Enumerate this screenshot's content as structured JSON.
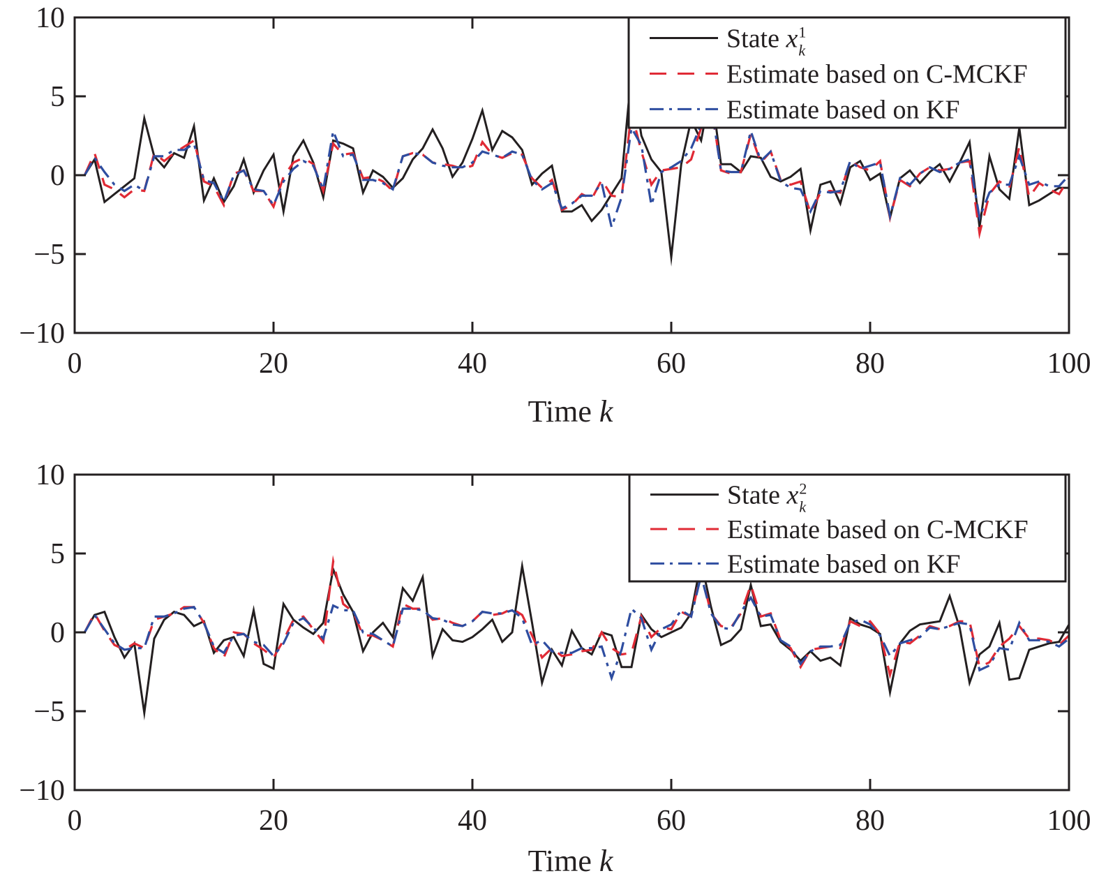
{
  "colors": {
    "state": "#231f20",
    "cmckf": "#e02a35",
    "kf": "#2e4da0",
    "axis": "#231f20"
  },
  "chart_data": [
    {
      "type": "line",
      "xlabel_text": "Time ",
      "xlabel_var": "k",
      "xlim": [
        0,
        100
      ],
      "ylim": [
        -10,
        10
      ],
      "xticks": [
        "0",
        "20",
        "40",
        "60",
        "80",
        "100"
      ],
      "yticks": [
        "10",
        "5",
        "0",
        "−5",
        "−10"
      ],
      "grid": false,
      "legend_position": "top-right",
      "legend": [
        {
          "label": "State ",
          "var": "x",
          "sup": "1",
          "sub": "k"
        },
        {
          "label": "Estimate based on C-MCKF"
        },
        {
          "label": "Estimate based on KF"
        }
      ],
      "x": [
        1,
        2,
        3,
        4,
        5,
        6,
        7,
        8,
        9,
        10,
        11,
        12,
        13,
        14,
        15,
        16,
        17,
        18,
        19,
        20,
        21,
        22,
        23,
        24,
        25,
        26,
        27,
        28,
        29,
        30,
        31,
        32,
        33,
        34,
        35,
        36,
        37,
        38,
        39,
        40,
        41,
        42,
        43,
        44,
        45,
        46,
        47,
        48,
        49,
        50,
        51,
        52,
        53,
        54,
        55,
        56,
        57,
        58,
        59,
        60,
        61,
        62,
        63,
        64,
        65,
        66,
        67,
        68,
        69,
        70,
        71,
        72,
        73,
        74,
        75,
        76,
        77,
        78,
        79,
        80,
        81,
        82,
        83,
        84,
        85,
        86,
        87,
        88,
        89,
        90,
        91,
        92,
        93,
        94,
        95,
        96,
        97,
        98,
        99,
        100
      ],
      "series": [
        {
          "name": "State x_k^1",
          "style": "solid",
          "values": [
            0,
            1.0,
            -1.7,
            -1.2,
            -0.7,
            -0.2,
            3.6,
            1.2,
            0.5,
            1.4,
            1.1,
            3.1,
            -1.6,
            -0.2,
            -1.7,
            -0.7,
            1.0,
            -1.1,
            0.3,
            1.3,
            -2.3,
            1.2,
            2.2,
            0.8,
            -1.4,
            2.2,
            2.0,
            1.7,
            -1.1,
            0.3,
            -0.1,
            -0.8,
            -0.2,
            1.0,
            1.7,
            2.9,
            1.7,
            -0.1,
            0.8,
            2.3,
            4.1,
            1.6,
            2.8,
            2.4,
            1.6,
            -0.6,
            0.1,
            0.6,
            -2.3,
            -2.3,
            -1.9,
            -2.9,
            -2.2,
            -1.2,
            -0.2,
            6.5,
            2.5,
            1.0,
            0.2,
            -5.2,
            0.7,
            3.5,
            2.2,
            5.5,
            0.7,
            0.7,
            0.2,
            1.2,
            1.1,
            -0.1,
            -0.4,
            -0.1,
            0.4,
            -3.5,
            -0.6,
            -0.4,
            -1.8,
            0.5,
            0.9,
            -0.3,
            0.1,
            -2.7,
            -0.2,
            0.3,
            -0.5,
            0.2,
            0.7,
            -0.4,
            0.8,
            2.1,
            -3.3,
            1.2,
            -0.9,
            -1.5,
            3.0,
            -1.9,
            -1.6,
            -1.2,
            -0.8,
            -0.8
          ]
        },
        {
          "name": "Estimate based on C-MCKF",
          "style": "dashed",
          "values": [
            0,
            1.4,
            -0.6,
            -0.9,
            -1.4,
            -0.9,
            -1.0,
            1.4,
            0.9,
            1.4,
            1.8,
            2.2,
            -0.4,
            -0.7,
            -1.9,
            0.1,
            0.3,
            -1.0,
            -1.0,
            -2.0,
            -0.1,
            0.8,
            1.1,
            0.7,
            -1.0,
            2.0,
            1.3,
            1.4,
            -0.2,
            -0.1,
            -0.4,
            -1.0,
            1.2,
            1.4,
            1.3,
            0.8,
            0.7,
            0.6,
            0.4,
            0.6,
            2.1,
            1.3,
            1.1,
            1.4,
            1.3,
            -0.2,
            -0.8,
            -0.3,
            -2.2,
            -1.9,
            -1.2,
            -1.5,
            -0.3,
            -1.3,
            -1.4,
            4.0,
            1.5,
            -0.6,
            0.3,
            0.4,
            0.5,
            1.0,
            3.0,
            4.5,
            0.3,
            0.1,
            0.2,
            2.6,
            0.8,
            1.5,
            -0.3,
            -0.6,
            -0.4,
            -2.4,
            -1.1,
            -1.0,
            -1.1,
            0.9,
            0.5,
            0.3,
            0.9,
            -2.7,
            -0.3,
            -0.7,
            0.1,
            0.5,
            0.3,
            0.4,
            0.8,
            0.9,
            -3.7,
            -1.2,
            -0.4,
            -0.8,
            1.8,
            -1.4,
            -0.5,
            -0.9,
            -1.2,
            -0.2
          ]
        },
        {
          "name": "Estimate based on KF",
          "style": "dashdot",
          "values": [
            0,
            1.1,
            0.2,
            -0.6,
            -1.0,
            -0.6,
            -1.0,
            1.2,
            1.2,
            1.6,
            1.6,
            2.0,
            -0.3,
            -0.5,
            -1.7,
            0.0,
            0.3,
            -0.9,
            -1.0,
            -1.9,
            -0.4,
            0.4,
            0.9,
            0.6,
            -0.9,
            2.8,
            1.2,
            1.3,
            -0.3,
            -0.3,
            -0.5,
            -0.9,
            1.2,
            1.4,
            1.3,
            0.8,
            0.6,
            0.5,
            0.5,
            0.8,
            1.5,
            1.3,
            1.1,
            1.5,
            1.3,
            -0.3,
            -0.9,
            -0.5,
            -2.1,
            -1.8,
            -1.3,
            -1.3,
            -0.5,
            -3.3,
            -1.4,
            3.0,
            1.9,
            -1.9,
            0.2,
            0.5,
            0.9,
            1.7,
            3.2,
            4.5,
            0.3,
            0.2,
            0.2,
            2.8,
            0.9,
            1.5,
            -0.4,
            -0.8,
            -0.9,
            -2.3,
            -1.0,
            -1.1,
            -1.0,
            0.9,
            0.4,
            0.6,
            0.8,
            -2.6,
            -0.2,
            -0.6,
            0.1,
            0.5,
            0.2,
            0.4,
            0.8,
            1.0,
            -2.7,
            -1.1,
            -0.6,
            -0.6,
            1.2,
            -0.6,
            -0.4,
            -0.7,
            -0.7,
            -0.0
          ]
        }
      ]
    },
    {
      "type": "line",
      "xlabel_text": "Time ",
      "xlabel_var": "k",
      "xlim": [
        0,
        100
      ],
      "ylim": [
        -10,
        10
      ],
      "xticks": [
        "0",
        "20",
        "40",
        "60",
        "80",
        "100"
      ],
      "yticks": [
        "10",
        "5",
        "0",
        "−5",
        "−10"
      ],
      "grid": false,
      "legend_position": "top-right",
      "legend": [
        {
          "label": "State ",
          "var": "x",
          "sup": "2",
          "sub": "k"
        },
        {
          "label": "Estimate based on C-MCKF"
        },
        {
          "label": "Estimate based on KF"
        }
      ],
      "x": [
        1,
        2,
        3,
        4,
        5,
        6,
        7,
        8,
        9,
        10,
        11,
        12,
        13,
        14,
        15,
        16,
        17,
        18,
        19,
        20,
        21,
        22,
        23,
        24,
        25,
        26,
        27,
        28,
        29,
        30,
        31,
        32,
        33,
        34,
        35,
        36,
        37,
        38,
        39,
        40,
        41,
        42,
        43,
        44,
        45,
        46,
        47,
        48,
        49,
        50,
        51,
        52,
        53,
        54,
        55,
        56,
        57,
        58,
        59,
        60,
        61,
        62,
        63,
        64,
        65,
        66,
        67,
        68,
        69,
        70,
        71,
        72,
        73,
        74,
        75,
        76,
        77,
        78,
        79,
        80,
        81,
        82,
        83,
        84,
        85,
        86,
        87,
        88,
        89,
        90,
        91,
        92,
        93,
        94,
        95,
        96,
        97,
        98,
        99,
        100
      ],
      "series": [
        {
          "name": "State x_k^2",
          "style": "solid",
          "values": [
            0,
            1.1,
            1.3,
            -0.3,
            -1.6,
            -0.7,
            -5.1,
            -0.4,
            0.8,
            1.3,
            1.1,
            0.4,
            0.7,
            -1.3,
            -0.5,
            -0.3,
            -1.5,
            1.4,
            -2.0,
            -2.3,
            1.8,
            0.8,
            0.3,
            -0.1,
            0.6,
            4.0,
            2.4,
            1.3,
            -1.2,
            0.0,
            0.6,
            -0.3,
            2.8,
            2.0,
            3.5,
            -1.5,
            0.2,
            -0.5,
            -0.6,
            -0.3,
            0.2,
            0.8,
            -0.6,
            0.0,
            4.2,
            0.6,
            -3.2,
            -1.1,
            -2.1,
            0.1,
            -1.0,
            -1.4,
            0.0,
            -0.2,
            -2.2,
            -2.2,
            1.1,
            0.2,
            -0.3,
            0.0,
            0.3,
            1.2,
            4.5,
            1.6,
            -0.8,
            -0.5,
            0.2,
            3.0,
            0.4,
            0.5,
            -0.6,
            -1.1,
            -1.8,
            -1.2,
            -1.8,
            -1.6,
            -2.1,
            0.9,
            0.5,
            0.3,
            -0.1,
            -3.8,
            -0.7,
            0.1,
            0.5,
            0.6,
            0.7,
            2.3,
            0.3,
            -3.2,
            -1.4,
            -0.9,
            0.6,
            -3.0,
            -2.9,
            -1.1,
            -0.9,
            -0.7,
            -0.6,
            0.5
          ]
        },
        {
          "name": "Estimate based on C-MCKF",
          "style": "dashed",
          "values": [
            0,
            1.2,
            0.1,
            -0.8,
            -1.1,
            -0.7,
            -1.0,
            0.8,
            1.0,
            1.2,
            1.6,
            1.6,
            0.6,
            -1.0,
            -1.6,
            0.0,
            -0.1,
            -0.7,
            -1.1,
            -1.6,
            -0.5,
            0.8,
            1.0,
            0.2,
            -0.6,
            4.5,
            1.8,
            1.3,
            -0.2,
            -0.2,
            -0.5,
            -0.9,
            1.8,
            1.5,
            1.5,
            0.8,
            0.9,
            0.6,
            0.4,
            0.7,
            1.3,
            1.1,
            1.2,
            1.5,
            1.1,
            -0.2,
            -1.6,
            -1.0,
            -1.5,
            -1.4,
            -1.2,
            -1.1,
            0.0,
            -1.0,
            -1.4,
            -1.3,
            1.0,
            -0.3,
            0.3,
            0.2,
            1.3,
            1.0,
            3.8,
            1.2,
            0.4,
            0.3,
            1.2,
            3.0,
            1.0,
            1.2,
            -0.5,
            -1.0,
            -2.2,
            -1.1,
            -1.0,
            -0.9,
            -1.0,
            0.7,
            0.4,
            0.7,
            -0.1,
            -2.7,
            -0.6,
            -0.7,
            -0.2,
            0.4,
            0.2,
            0.4,
            0.7,
            0.7,
            -2.2,
            -1.9,
            -0.9,
            -0.4,
            0.4,
            -0.4,
            -0.4,
            -0.5,
            -0.8,
            -0.2
          ]
        },
        {
          "name": "Estimate based on KF",
          "style": "dashdot",
          "values": [
            0,
            1.1,
            0.2,
            -0.7,
            -1.1,
            -1.0,
            -1.0,
            1.0,
            1.0,
            1.2,
            1.5,
            1.6,
            0.6,
            -0.9,
            -1.3,
            -0.2,
            -0.1,
            -0.6,
            -0.8,
            -1.5,
            -0.7,
            0.6,
            0.9,
            0.3,
            -0.4,
            1.7,
            1.4,
            1.4,
            0.0,
            -0.1,
            -0.5,
            -0.9,
            1.5,
            1.5,
            1.4,
            0.9,
            0.8,
            0.5,
            0.4,
            0.7,
            1.3,
            1.2,
            1.2,
            1.4,
            0.9,
            -0.8,
            -0.5,
            -1.2,
            -1.3,
            -1.3,
            -1.0,
            -1.0,
            -0.9,
            -2.9,
            -1.1,
            1.5,
            0.9,
            -1.1,
            0.2,
            0.5,
            1.4,
            1.0,
            3.6,
            1.2,
            0.3,
            0.2,
            1.3,
            2.2,
            1.0,
            1.1,
            -0.5,
            -0.9,
            -2.0,
            -1.2,
            -0.9,
            -0.9,
            -0.8,
            0.6,
            0.8,
            0.5,
            -0.2,
            -1.5,
            -0.7,
            -0.5,
            -0.3,
            0.3,
            0.2,
            0.4,
            0.6,
            0.5,
            -2.4,
            -2.1,
            -1.0,
            -1.1,
            0.6,
            -0.5,
            -0.5,
            -0.6,
            -0.9,
            -0.4
          ]
        }
      ]
    }
  ]
}
